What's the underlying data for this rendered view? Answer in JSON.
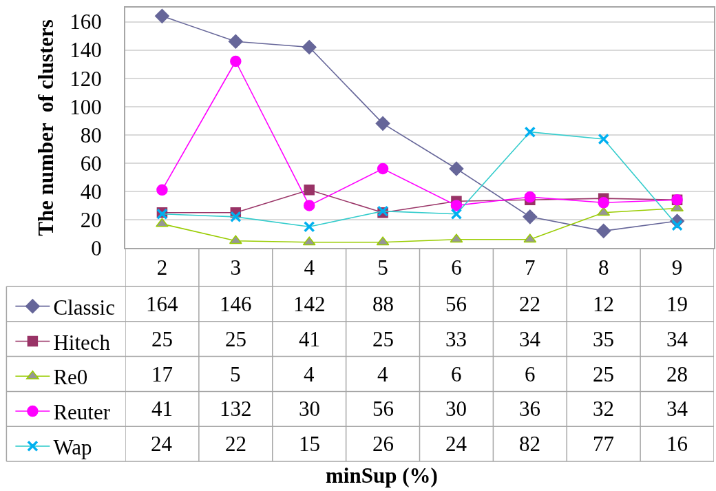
{
  "chart_data": {
    "type": "line",
    "ylabel": "The number  of clusters",
    "annotations": [
      "minSup (%)"
    ],
    "categories": [
      "2",
      "3",
      "4",
      "5",
      "6",
      "7",
      "8",
      "9"
    ],
    "series": [
      {
        "name": "Classic",
        "color": "#666699",
        "marker": "diamond",
        "values": [
          164,
          146,
          142,
          88,
          56,
          22,
          12,
          19
        ]
      },
      {
        "name": "Hitech",
        "color": "#993366",
        "marker": "square",
        "values": [
          25,
          25,
          41,
          25,
          33,
          34,
          35,
          34
        ]
      },
      {
        "name": "Re0",
        "color": "#99cc00",
        "colors": [
          "#969696",
          "#969696",
          "#969696",
          "#969696",
          "#969696",
          "#969696",
          "#969696",
          "#969696"
        ],
        "marker": "triangle",
        "values": [
          17,
          5,
          4,
          4,
          6,
          6,
          25,
          28
        ]
      },
      {
        "name": "Reuter",
        "color": "#ff00ff",
        "marker": "circle",
        "values": [
          41,
          132,
          30,
          56,
          30,
          36,
          32,
          34
        ]
      },
      {
        "name": "Wap",
        "color": "#33cccc",
        "colors": [
          "#00b0f0",
          "#00b0f0",
          "#00b0f0",
          "#00b0f0",
          "#00b0f0",
          "#00b0f0",
          "#00b0f0",
          "#00b0f0"
        ],
        "marker": "cross",
        "values": [
          24,
          22,
          15,
          26,
          24,
          82,
          77,
          16
        ]
      }
    ],
    "ylim": [
      0,
      170
    ],
    "yticks": [
      0,
      20,
      40,
      60,
      80,
      100,
      120,
      140,
      160
    ],
    "grid": "y",
    "legend": "bottom left",
    "data_labels": true,
    "line_style": "solid"
  }
}
